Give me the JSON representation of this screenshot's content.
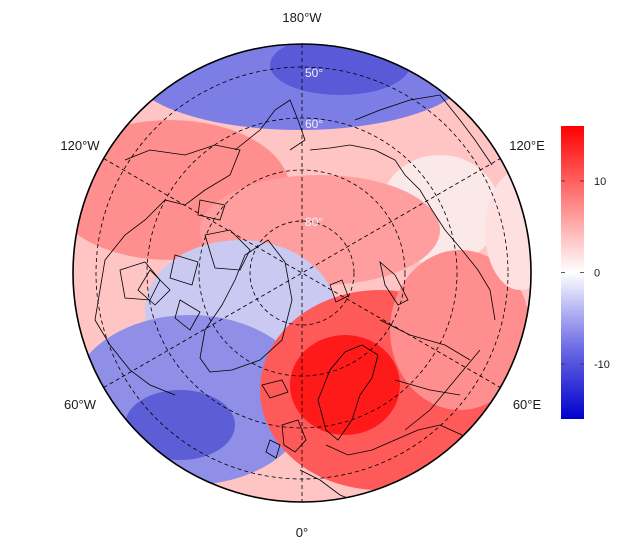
{
  "map": {
    "projection": "north-polar-stereographic",
    "longitude_labels": {
      "top": "180°W",
      "upper_left": "120°W",
      "upper_right": "120°E",
      "lower_left": "60°W",
      "lower_right": "60°E",
      "bottom": "0°"
    },
    "latitude_labels": [
      "50°",
      "60°",
      "80°"
    ],
    "colors": {
      "neg_max": "#0000cc",
      "zero": "#ffffff",
      "pos_max": "#ff0000",
      "coastline": "#000000",
      "graticule": "#000000"
    }
  },
  "colorbar": {
    "range": [
      -16,
      16
    ],
    "ticks": [
      {
        "value": 10,
        "label": "10"
      },
      {
        "value": 0,
        "label": "0"
      },
      {
        "value": -10,
        "label": "-10"
      }
    ]
  }
}
